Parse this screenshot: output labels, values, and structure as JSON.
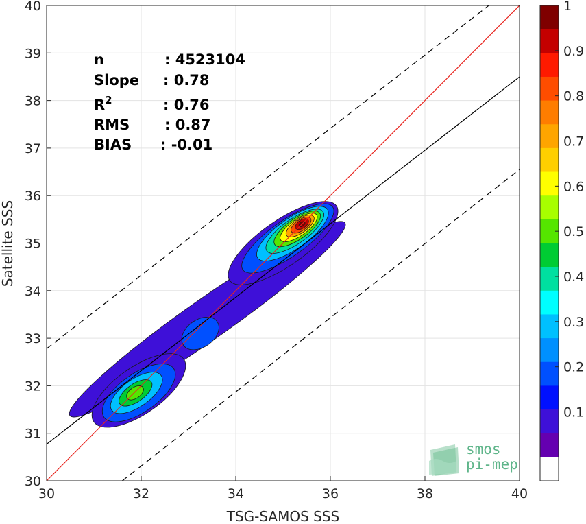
{
  "chart_data": {
    "type": "heatmap",
    "subtype": "density-contour scatter comparison",
    "xlabel": "TSG-SAMOS SSS",
    "ylabel": "Satellite SSS",
    "xlim": [
      30,
      40
    ],
    "ylim": [
      30,
      40
    ],
    "x_ticks": [
      "30",
      "32",
      "34",
      "36",
      "38",
      "40"
    ],
    "y_ticks": [
      "30",
      "31",
      "32",
      "33",
      "34",
      "35",
      "36",
      "37",
      "38",
      "39",
      "40"
    ],
    "grid": true,
    "stats": [
      {
        "label": "n",
        "value": ": 4523104"
      },
      {
        "label": "Slope",
        "value": ": 0.78"
      },
      {
        "label": "R",
        "sup": "2",
        "value": ": 0.76"
      },
      {
        "label": "RMS",
        "value": ": 0.87"
      },
      {
        "label": "BIAS",
        "value": ": -0.01"
      }
    ],
    "lines": [
      {
        "kind": "identity",
        "color": "#e8251f",
        "style": "solid",
        "x": [
          30,
          40
        ],
        "y": [
          30,
          40
        ]
      },
      {
        "kind": "regression",
        "color": "#000000",
        "style": "solid",
        "x": [
          30,
          40
        ],
        "y": [
          30.77,
          38.5
        ]
      },
      {
        "kind": "upper-bound",
        "color": "#000000",
        "style": "dashed",
        "x": [
          30,
          39.35
        ],
        "y": [
          32.78,
          40
        ]
      },
      {
        "kind": "lower-bound",
        "color": "#000000",
        "style": "dashed",
        "x": [
          31.6,
          40
        ],
        "y": [
          30,
          36.55
        ]
      }
    ],
    "density_peak": {
      "x": 35.4,
      "y": 35.4,
      "value": 1.0
    },
    "secondary_peak": {
      "x": 31.9,
      "y": 31.85,
      "value": 0.5
    },
    "colorbar": {
      "min": 0,
      "max": 1,
      "ticks": [
        "0.1",
        "0.2",
        "0.3",
        "0.4",
        "0.5",
        "0.6",
        "0.7",
        "0.8",
        "0.9",
        "1"
      ],
      "levels_top_to_bottom": [
        "#7f0000",
        "#c40000",
        "#ff1a00",
        "#ff4d00",
        "#ff7d00",
        "#ffa500",
        "#ffcf00",
        "#ffff00",
        "#a8ff00",
        "#55e600",
        "#00cc33",
        "#00e0a0",
        "#00ffff",
        "#00c0ff",
        "#0090ff",
        "#0050ff",
        "#0010ff",
        "#3e10d8",
        "#6500b0",
        "#ffffff"
      ]
    }
  },
  "logo": {
    "line1": "smos",
    "line2": "pi-mep",
    "color": "#5fb58a"
  }
}
